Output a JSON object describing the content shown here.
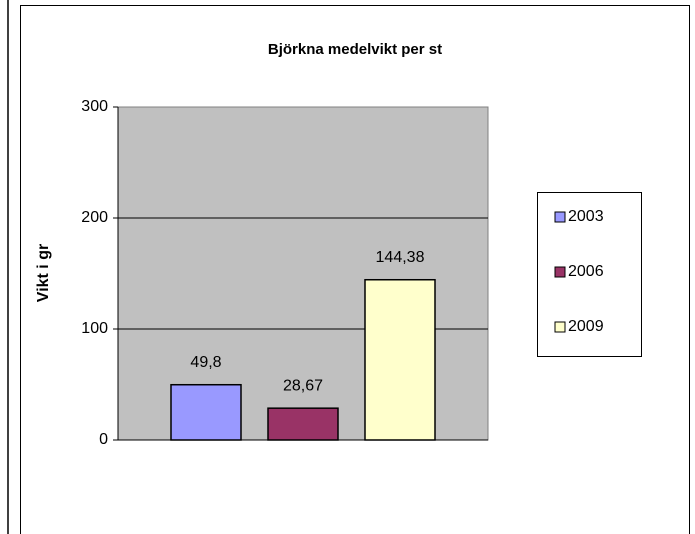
{
  "chart_data": {
    "type": "bar",
    "title": "Björkna medelvikt per st",
    "y_label": "Vikt i gr",
    "categories": [
      null
    ],
    "series": [
      {
        "name": "2003",
        "color": "#9999ff",
        "values": [
          49.8
        ],
        "value_labels": [
          "49,8"
        ]
      },
      {
        "name": "2006",
        "color": "#993366",
        "values": [
          28.67
        ],
        "value_labels": [
          "28,67"
        ]
      },
      {
        "name": "2009",
        "color": "#ffffcc",
        "values": [
          144.38
        ],
        "value_labels": [
          "144,38"
        ]
      }
    ],
    "ylim": [
      0,
      300
    ],
    "yticks": [
      0,
      100,
      200,
      300
    ],
    "grid": true,
    "legend": "right"
  }
}
